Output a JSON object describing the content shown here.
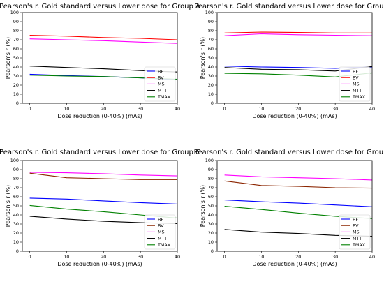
{
  "chart_data": [
    {
      "type": "line",
      "title": "Pearson's r. Gold standard versus Lower dose for Group A",
      "xlabel": "Dose reduction (0-40%) (mAs)",
      "ylabel": "Pearson's r (%)",
      "x": [
        0,
        10,
        20,
        30,
        40
      ],
      "xticks": [
        0,
        10,
        20,
        30,
        40
      ],
      "xlim": [
        -2,
        40
      ],
      "ylim": [
        0,
        100
      ],
      "yticks": [
        0,
        10,
        20,
        30,
        40,
        50,
        60,
        70,
        80,
        90,
        100
      ],
      "legend_position": "lower right",
      "series": [
        {
          "name": "BF",
          "color": "#0000ff",
          "values": [
            32,
            30.5,
            29.5,
            28,
            26
          ]
        },
        {
          "name": "BV",
          "color": "#ff0000",
          "values": [
            75,
            74,
            72.5,
            71.5,
            70
          ]
        },
        {
          "name": "MSI",
          "color": "#ff00ff",
          "values": [
            71,
            70,
            69,
            67.5,
            66
          ]
        },
        {
          "name": "MTT",
          "color": "#000000",
          "values": [
            41,
            39.5,
            38,
            36,
            34.5
          ]
        },
        {
          "name": "TMAX",
          "color": "#008000",
          "values": [
            31,
            30,
            29.5,
            28,
            26.5
          ]
        }
      ]
    },
    {
      "type": "line",
      "title": "Pearson's r. Gold standard versus Lower dose for Group B",
      "xlabel": "Dose reduction (0-40%) (mAs)",
      "ylabel": "Pearson's r (%)",
      "x": [
        0,
        10,
        20,
        30,
        40
      ],
      "xticks": [
        0,
        10,
        20,
        30,
        40
      ],
      "xlim": [
        -2,
        40
      ],
      "ylim": [
        0,
        100
      ],
      "yticks": [
        0,
        10,
        20,
        30,
        40,
        50,
        60,
        70,
        80,
        90,
        100
      ],
      "legend_position": "lower right",
      "series": [
        {
          "name": "BF",
          "color": "#0000ff",
          "values": [
            41,
            40,
            39.5,
            38.5,
            40
          ]
        },
        {
          "name": "BV",
          "color": "#ff0000",
          "values": [
            77.5,
            78.5,
            78,
            77.5,
            77.5
          ]
        },
        {
          "name": "MSI",
          "color": "#ff00ff",
          "values": [
            74.5,
            76.5,
            75.5,
            75,
            74.5
          ]
        },
        {
          "name": "MTT",
          "color": "#000000",
          "values": [
            39.5,
            37.5,
            37,
            35.5,
            40.5
          ]
        },
        {
          "name": "TMAX",
          "color": "#008000",
          "values": [
            33,
            32.5,
            31,
            29,
            33.5
          ]
        }
      ]
    },
    {
      "type": "line",
      "title": "Pearson's r. Gold standard versus Lower dose for Group C",
      "xlabel": "Dose reduction (0-40%) (mAs)",
      "ylabel": "Pearson's r (%)",
      "x": [
        0,
        10,
        20,
        30,
        40
      ],
      "xticks": [
        0,
        10,
        20,
        30,
        40
      ],
      "xlim": [
        -2,
        40
      ],
      "ylim": [
        0,
        100
      ],
      "yticks": [
        0,
        10,
        20,
        30,
        40,
        50,
        60,
        70,
        80,
        90,
        100
      ],
      "legend_position": "lower right",
      "series": [
        {
          "name": "BF",
          "color": "#0000ff",
          "values": [
            58.5,
            57.5,
            55.5,
            53.5,
            52
          ]
        },
        {
          "name": "BV",
          "color": "#8b2500",
          "values": [
            86,
            81,
            80,
            79,
            79
          ]
        },
        {
          "name": "MSI",
          "color": "#ff00ff",
          "values": [
            87,
            86.5,
            85.5,
            84,
            83
          ]
        },
        {
          "name": "MTT",
          "color": "#000000",
          "values": [
            38.5,
            35.5,
            33,
            31.5,
            30.5
          ]
        },
        {
          "name": "TMAX",
          "color": "#008000",
          "values": [
            50.5,
            46.5,
            43.5,
            40,
            36.5
          ]
        }
      ]
    },
    {
      "type": "line",
      "title": "Pearson's r. Gold standard versus Lower dose for Group D",
      "xlabel": "Dose reduction (0-40%) (mAs)",
      "ylabel": "Pearson's r (%)",
      "x": [
        0,
        10,
        20,
        30,
        40
      ],
      "xticks": [
        0,
        10,
        20,
        30,
        40
      ],
      "xlim": [
        -2,
        40
      ],
      "ylim": [
        0,
        100
      ],
      "yticks": [
        0,
        10,
        20,
        30,
        40,
        50,
        60,
        70,
        80,
        90,
        100
      ],
      "legend_position": "lower right",
      "series": [
        {
          "name": "BF",
          "color": "#0000ff",
          "values": [
            56.5,
            54.5,
            53,
            51,
            49
          ]
        },
        {
          "name": "BV",
          "color": "#8b2500",
          "values": [
            77.5,
            72.5,
            71.5,
            70,
            69.5
          ]
        },
        {
          "name": "MSI",
          "color": "#ff00ff",
          "values": [
            84,
            82,
            81,
            80,
            78.5
          ]
        },
        {
          "name": "MTT",
          "color": "#000000",
          "values": [
            24,
            21,
            19.5,
            17.5,
            16.5
          ]
        },
        {
          "name": "TMAX",
          "color": "#008000",
          "values": [
            49.5,
            46,
            42,
            38.5,
            36
          ]
        }
      ]
    }
  ]
}
